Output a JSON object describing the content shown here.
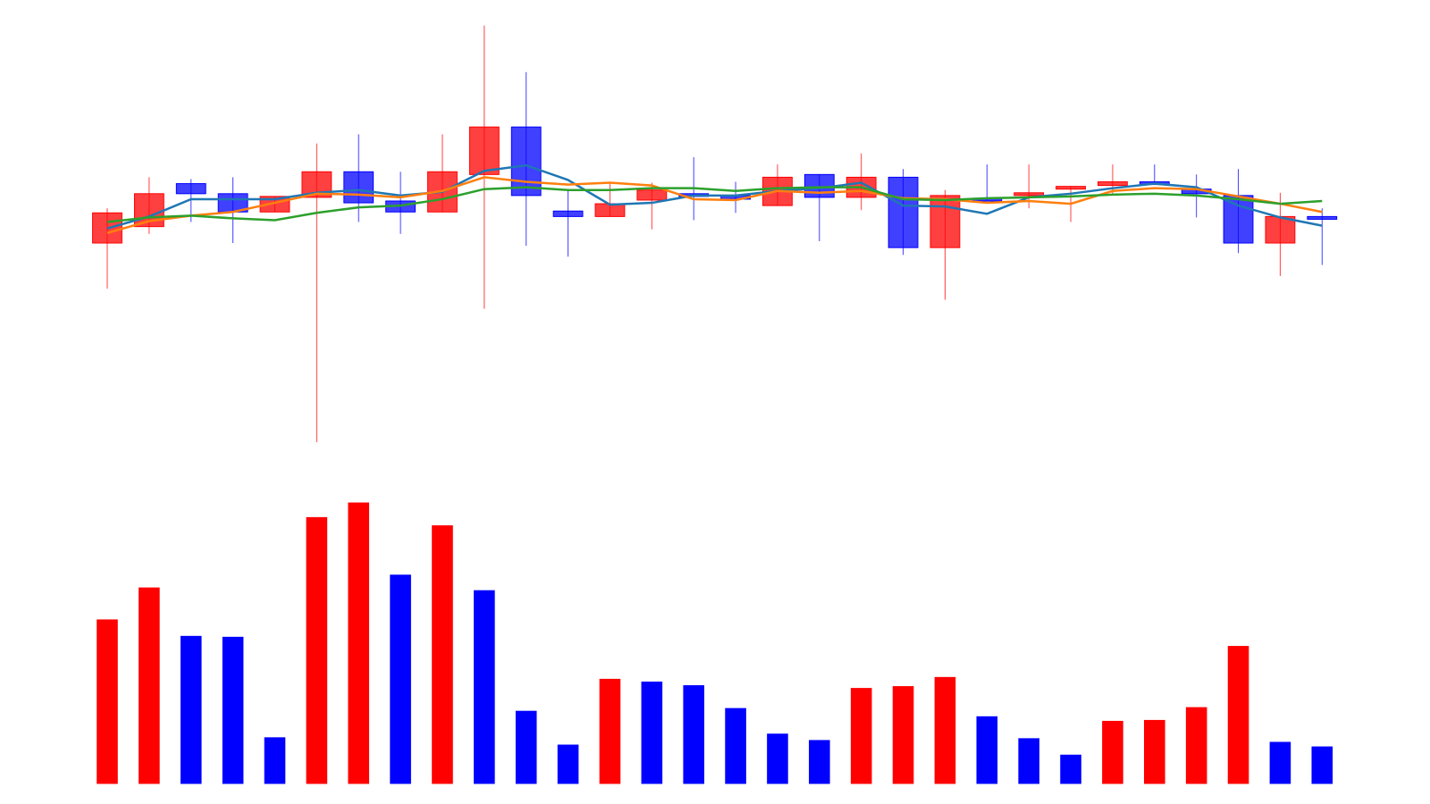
{
  "chart_data": {
    "type": "candlestick",
    "ylim": [
      0,
      500
    ],
    "open": [
      234,
      252,
      299,
      288,
      268,
      284,
      312,
      280,
      268,
      309,
      361,
      269,
      263,
      281,
      288,
      286,
      275,
      309,
      284,
      306,
      229,
      283,
      286,
      293,
      297,
      301,
      293,
      286,
      234,
      263
    ],
    "high": [
      272,
      306,
      304,
      306,
      285,
      343,
      353,
      312,
      353,
      472,
      421,
      292,
      300,
      300,
      328,
      301,
      320,
      309,
      332,
      315,
      292,
      320,
      320,
      296,
      320,
      320,
      309,
      315,
      289,
      272
    ],
    "low": [
      184,
      244,
      257,
      234,
      268,
      16,
      257,
      244,
      268,
      162,
      231,
      219,
      263,
      249,
      259,
      267,
      275,
      236,
      270,
      221,
      172,
      280,
      272,
      257,
      286,
      298,
      262,
      223,
      198,
      210
    ],
    "close": [
      267,
      288,
      288,
      268,
      285,
      312,
      278,
      268,
      312,
      361,
      286,
      263,
      277,
      292,
      285,
      282,
      306,
      284,
      306,
      229,
      286,
      280,
      289,
      296,
      301,
      298,
      288,
      234,
      263,
      260
    ],
    "up_color": "#ff0000",
    "down_color": "#0000ff",
    "moving_averages": [
      {
        "color": "#1f77b4",
        "values": [
          250,
          263,
          282,
          282,
          282,
          289,
          292,
          286,
          290,
          313,
          319,
          303,
          276,
          278,
          286,
          286,
          291,
          294,
          300,
          275,
          274,
          266,
          284,
          288,
          294,
          299,
          295,
          275,
          262,
          253
        ]
      },
      {
        "color": "#ff7f0e",
        "values": [
          245,
          258,
          264,
          268,
          278,
          288,
          287,
          284,
          291,
          306,
          301,
          298,
          300,
          297,
          282,
          281,
          291,
          289,
          291,
          283,
          282,
          278,
          280,
          277,
          291,
          294,
          293,
          285,
          277,
          268
        ]
      },
      {
        "color": "#2ca02c",
        "values": [
          257,
          262,
          264,
          261,
          259,
          267,
          273,
          275,
          282,
          293,
          295,
          292,
          292,
          294,
          294,
          291,
          294,
          295,
          295,
          282,
          281,
          283,
          284,
          285,
          287,
          288,
          286,
          282,
          277,
          280
        ]
      }
    ],
    "volume": {
      "ylim": [
        0,
        330
      ],
      "values": [
        180,
        215,
        162,
        161,
        51,
        292,
        308,
        229,
        283,
        212,
        80,
        43,
        115,
        112,
        108,
        83,
        55,
        48,
        105,
        107,
        117,
        74,
        50,
        32,
        69,
        70,
        84,
        151,
        46,
        41
      ],
      "colors": [
        "#ff0000",
        "#ff0000",
        "#0000ff",
        "#0000ff",
        "#0000ff",
        "#ff0000",
        "#ff0000",
        "#0000ff",
        "#ff0000",
        "#0000ff",
        "#0000ff",
        "#0000ff",
        "#ff0000",
        "#0000ff",
        "#0000ff",
        "#0000ff",
        "#0000ff",
        "#0000ff",
        "#ff0000",
        "#ff0000",
        "#ff0000",
        "#0000ff",
        "#0000ff",
        "#0000ff",
        "#ff0000",
        "#ff0000",
        "#ff0000",
        "#ff0000",
        "#0000ff",
        "#0000ff"
      ]
    }
  }
}
